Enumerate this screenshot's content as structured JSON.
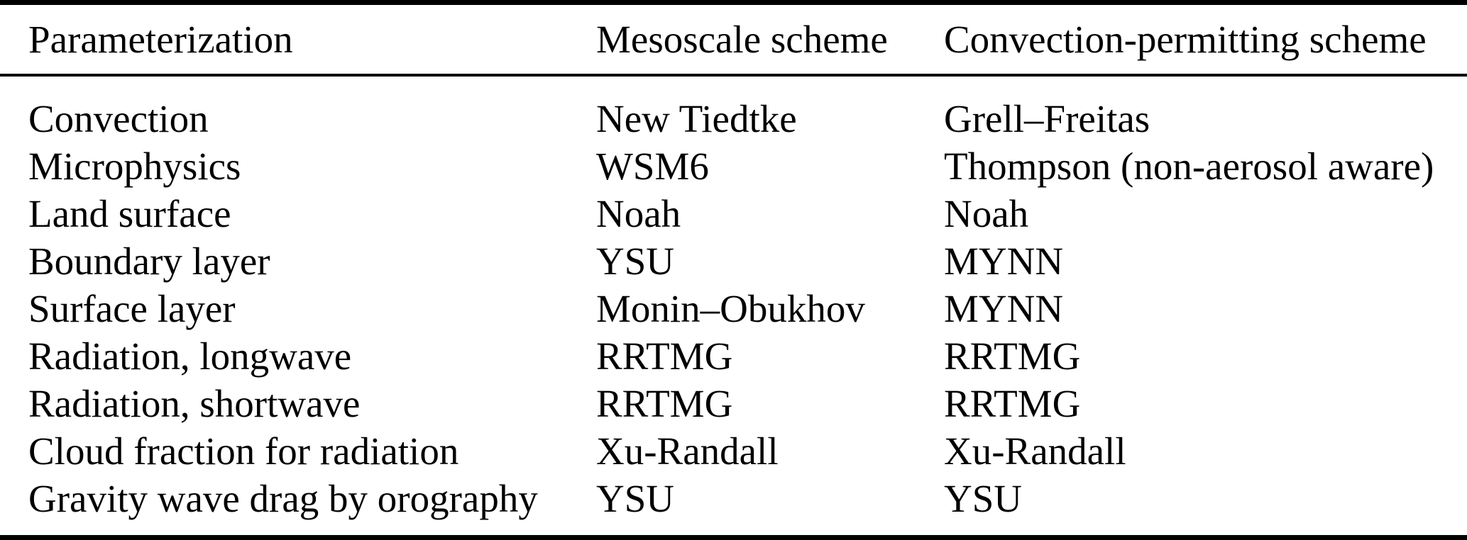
{
  "colors": {
    "background": "#ffffff",
    "text": "#000000",
    "rule": "#000000"
  },
  "table": {
    "columns": [
      {
        "label": "Parameterization"
      },
      {
        "label": "Mesoscale scheme"
      },
      {
        "label": "Convection-permitting scheme"
      }
    ],
    "rows": [
      {
        "parameterization": "Convection",
        "mesoscale": "New Tiedtke",
        "convection_permitting": "Grell–Freitas"
      },
      {
        "parameterization": "Microphysics",
        "mesoscale": "WSM6",
        "convection_permitting": "Thompson (non-aerosol aware)"
      },
      {
        "parameterization": "Land surface",
        "mesoscale": "Noah",
        "convection_permitting": "Noah"
      },
      {
        "parameterization": "Boundary layer",
        "mesoscale": "YSU",
        "convection_permitting": "MYNN"
      },
      {
        "parameterization": "Surface layer",
        "mesoscale": "Monin–Obukhov",
        "convection_permitting": "MYNN"
      },
      {
        "parameterization": "Radiation, longwave",
        "mesoscale": "RRTMG",
        "convection_permitting": "RRTMG"
      },
      {
        "parameterization": "Radiation, shortwave",
        "mesoscale": "RRTMG",
        "convection_permitting": "RRTMG"
      },
      {
        "parameterization": "Cloud fraction for radiation",
        "mesoscale": "Xu-Randall",
        "convection_permitting": "Xu-Randall"
      },
      {
        "parameterization": "Gravity wave drag by orography",
        "mesoscale": "YSU",
        "convection_permitting": "YSU"
      }
    ]
  }
}
